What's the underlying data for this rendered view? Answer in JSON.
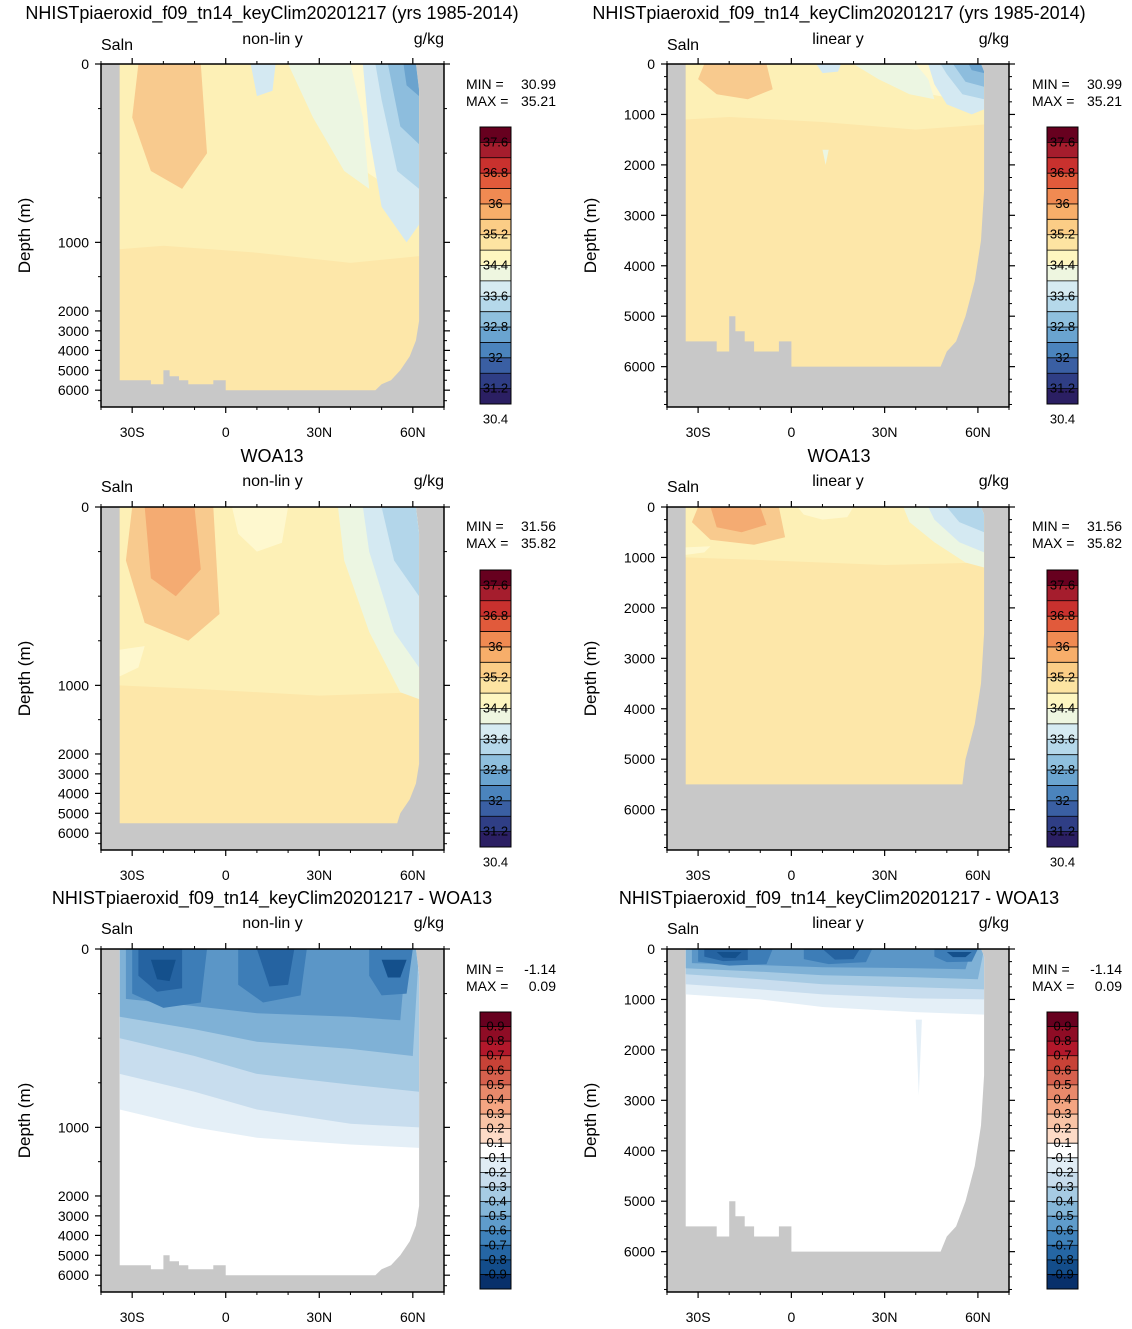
{
  "chart_data": [
    {
      "type": "heatmap",
      "panel": "model-nonlinear",
      "title": "NHISTpiaeroxid_f09_tn14_keyClim20201217 (yrs 1985-2014)",
      "left_label": "Saln",
      "center_label": "non-lin y",
      "right_label": "g/kg",
      "ylabel": "Depth (m)",
      "y_scale": "non-linear",
      "ytick_labels": [
        "0",
        "1000",
        "2000",
        "3000",
        "4000",
        "5000",
        "6000"
      ],
      "xtick_labels": [
        "30S",
        "0",
        "30N",
        "60N"
      ],
      "xlim": [
        -40,
        70
      ],
      "min_label": "MIN =",
      "min_value": "30.99",
      "max_label": "MAX =",
      "max_value": "35.21",
      "colorbar": "salinity"
    },
    {
      "type": "heatmap",
      "panel": "model-linear",
      "title": "NHISTpiaeroxid_f09_tn14_keyClim20201217 (yrs 1985-2014)",
      "left_label": "Saln",
      "center_label": "linear y",
      "right_label": "g/kg",
      "ylabel": "Depth (m)",
      "y_scale": "linear",
      "ylim": [
        0,
        6800
      ],
      "ytick_labels": [
        "0",
        "1000",
        "2000",
        "3000",
        "4000",
        "5000",
        "6000"
      ],
      "xtick_labels": [
        "30S",
        "0",
        "30N",
        "60N"
      ],
      "xlim": [
        -40,
        70
      ],
      "min_label": "MIN =",
      "min_value": "30.99",
      "max_label": "MAX =",
      "max_value": "35.21",
      "colorbar": "salinity"
    },
    {
      "type": "heatmap",
      "panel": "obs-nonlinear",
      "title": "WOA13",
      "left_label": "Saln",
      "center_label": "non-lin y",
      "right_label": "g/kg",
      "ylabel": "Depth (m)",
      "y_scale": "non-linear",
      "ytick_labels": [
        "0",
        "1000",
        "2000",
        "3000",
        "4000",
        "5000",
        "6000"
      ],
      "xtick_labels": [
        "30S",
        "0",
        "30N",
        "60N"
      ],
      "xlim": [
        -40,
        70
      ],
      "min_label": "MIN =",
      "min_value": "31.56",
      "max_label": "MAX =",
      "max_value": "35.82",
      "colorbar": "salinity"
    },
    {
      "type": "heatmap",
      "panel": "obs-linear",
      "title": "WOA13",
      "left_label": "Saln",
      "center_label": "linear y",
      "right_label": "g/kg",
      "ylabel": "Depth (m)",
      "y_scale": "linear",
      "ylim": [
        0,
        6800
      ],
      "ytick_labels": [
        "0",
        "1000",
        "2000",
        "3000",
        "4000",
        "5000",
        "6000"
      ],
      "xtick_labels": [
        "30S",
        "0",
        "30N",
        "60N"
      ],
      "xlim": [
        -40,
        70
      ],
      "min_label": "MIN =",
      "min_value": "31.56",
      "max_label": "MAX =",
      "max_value": "35.82",
      "colorbar": "salinity"
    },
    {
      "type": "heatmap",
      "panel": "diff-nonlinear",
      "title": "NHISTpiaeroxid_f09_tn14_keyClim20201217 - WOA13",
      "left_label": "Saln",
      "center_label": "non-lin y",
      "right_label": "g/kg",
      "ylabel": "Depth (m)",
      "y_scale": "non-linear",
      "ytick_labels": [
        "0",
        "1000",
        "2000",
        "3000",
        "4000",
        "5000",
        "6000"
      ],
      "xtick_labels": [
        "30S",
        "0",
        "30N",
        "60N"
      ],
      "xlim": [
        -40,
        70
      ],
      "min_label": "MIN =",
      "min_value": "-1.14",
      "max_label": "MAX =",
      "max_value": "0.09",
      "colorbar": "difference"
    },
    {
      "type": "heatmap",
      "panel": "diff-linear",
      "title": "NHISTpiaeroxid_f09_tn14_keyClim20201217 - WOA13",
      "left_label": "Saln",
      "center_label": "linear y",
      "right_label": "g/kg",
      "ylabel": "Depth (m)",
      "y_scale": "linear",
      "ylim": [
        0,
        6800
      ],
      "ytick_labels": [
        "0",
        "1000",
        "2000",
        "3000",
        "4000",
        "5000",
        "6000"
      ],
      "xtick_labels": [
        "30S",
        "0",
        "30N",
        "60N"
      ],
      "xlim": [
        -40,
        70
      ],
      "min_label": "MIN =",
      "min_value": "-1.14",
      "max_label": "MAX =",
      "max_value": "0.09",
      "colorbar": "difference"
    }
  ],
  "colorbars": {
    "salinity": {
      "labels": [
        "37.6",
        "36.8",
        "36",
        "35.2",
        "34.4",
        "33.6",
        "32.8",
        "32",
        "31.2",
        "30.4"
      ],
      "colors": [
        "#67001f",
        "#a51d2d",
        "#c9312e",
        "#e15a3b",
        "#f08a52",
        "#f7ae6a",
        "#fbcd86",
        "#fde4a2",
        "#fef6c0",
        "#eef6e0",
        "#d6ebf2",
        "#b5d8ea",
        "#8fc0de",
        "#6aa4d0",
        "#4b84bd",
        "#3a5fa3",
        "#2f3e85",
        "#2b1f63"
      ]
    },
    "difference": {
      "labels": [
        "0.9",
        "0.8",
        "0.7",
        "0.6",
        "0.5",
        "0.4",
        "0.3",
        "0.2",
        "0.1",
        "-0.1",
        "-0.2",
        "-0.3",
        "-0.4",
        "-0.5",
        "-0.6",
        "-0.7",
        "-0.8",
        "-0.9"
      ],
      "colors": [
        "#67001f",
        "#8f0c25",
        "#b2182b",
        "#c84237",
        "#d6604d",
        "#e8896b",
        "#f4a582",
        "#f9c4a6",
        "#fddbc7",
        "#ffffff",
        "#e1edf5",
        "#c7dcec",
        "#a6cbe3",
        "#84b6d8",
        "#5f9ccb",
        "#3f82bb",
        "#2566a4",
        "#134d8b",
        "#08306b"
      ]
    }
  },
  "palette": {
    "land": "#c8c8c8",
    "fill_light": "#fde7a9",
    "fill_yellow": "#fdf0b6",
    "fill_cream": "#fef8cf",
    "fill_orange": "#f8ca8e",
    "fill_orange_dark": "#f4ab72",
    "fill_mint": "#ecf6e2",
    "fill_blue1": "#d4e9f2",
    "fill_blue2": "#b3d6ea",
    "fill_blue3": "#8dbddd",
    "fill_blue4": "#6ba3ce",
    "d_white": "#ffffff",
    "d1": "#e4eff7",
    "d2": "#c8ddee",
    "d3": "#a6cae3",
    "d4": "#7fb1d6",
    "d5": "#5b96c7",
    "d6": "#3d7db7",
    "d7": "#2563a1",
    "d8": "#14508c"
  }
}
